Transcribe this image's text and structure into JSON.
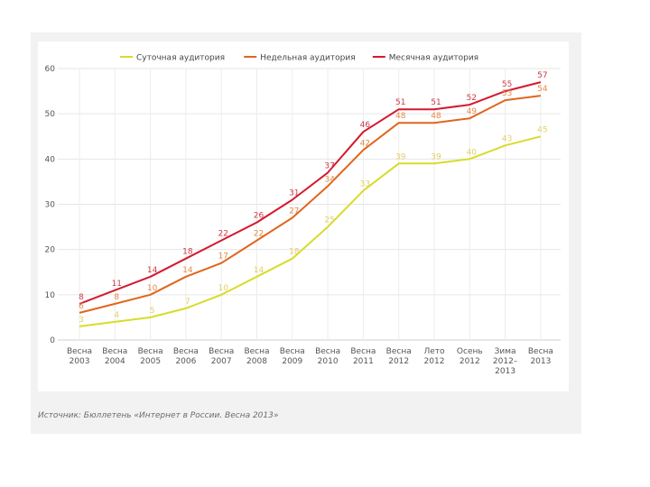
{
  "source_text": "Источник: Бюллетень «Интернет в России. Весна 2013»",
  "chart_data": {
    "type": "line",
    "title": "",
    "xlabel": "",
    "ylabel": "",
    "ylim": [
      0,
      60
    ],
    "yticks": [
      0,
      10,
      20,
      30,
      40,
      50,
      60
    ],
    "grid": true,
    "legend_position": "top",
    "categories": [
      [
        "Весна",
        "2003"
      ],
      [
        "Весна",
        "2004"
      ],
      [
        "Весна",
        "2005"
      ],
      [
        "Весна",
        "2006"
      ],
      [
        "Весна",
        "2007"
      ],
      [
        "Весна",
        "2008"
      ],
      [
        "Весна",
        "2009"
      ],
      [
        "Весна",
        "2010"
      ],
      [
        "Весна",
        "2011"
      ],
      [
        "Весна",
        "2012"
      ],
      [
        "Лето",
        "2012"
      ],
      [
        "Осень",
        "2012"
      ],
      [
        "Зима",
        "2012–",
        "2013"
      ],
      [
        "Весна",
        "2013"
      ]
    ],
    "series": [
      {
        "name": "Суточная аудитория",
        "color": "#d8dc2a",
        "label_color": "#e2cf63",
        "values": [
          3,
          4,
          5,
          7,
          10,
          14,
          18,
          25,
          33,
          39,
          39,
          40,
          43,
          45
        ],
        "labels": [
          "3",
          "4",
          "5",
          "7",
          "10",
          "14",
          "18",
          "25",
          "33",
          "39",
          "39",
          "40",
          "43",
          "45"
        ],
        "label_points": [
          0,
          1,
          2,
          3,
          4,
          5,
          6,
          7,
          8,
          9,
          10,
          11,
          12,
          13
        ]
      },
      {
        "name": "Недельная аудитория",
        "color": "#e0661e",
        "label_color": "#e58a48",
        "values": [
          6,
          8,
          10,
          14,
          17,
          22,
          27,
          34,
          42,
          48,
          48,
          49,
          53,
          54
        ],
        "labels": [
          "6",
          "8",
          "10",
          "14",
          "17",
          "22",
          "27",
          "34",
          "42",
          "48",
          "48",
          "49",
          "53",
          "54"
        ],
        "label_points": [
          0,
          1,
          2,
          3,
          4,
          5,
          6,
          7,
          8,
          9,
          10,
          11,
          12,
          13
        ]
      },
      {
        "name": "Месячная аудитория",
        "color": "#d4192d",
        "label_color": "#cf3a45",
        "values": [
          8,
          11,
          14,
          18,
          22,
          26,
          31,
          37,
          46,
          51,
          51,
          52,
          55,
          57
        ],
        "labels": [
          "8",
          "11",
          "14",
          "18",
          "22",
          "26",
          "31",
          "37",
          "46",
          "51",
          "51",
          "52",
          "55",
          "57"
        ],
        "label_points": [
          0,
          1,
          2,
          3,
          4,
          5,
          6,
          7,
          8,
          9,
          10,
          11,
          12,
          13
        ]
      }
    ]
  }
}
